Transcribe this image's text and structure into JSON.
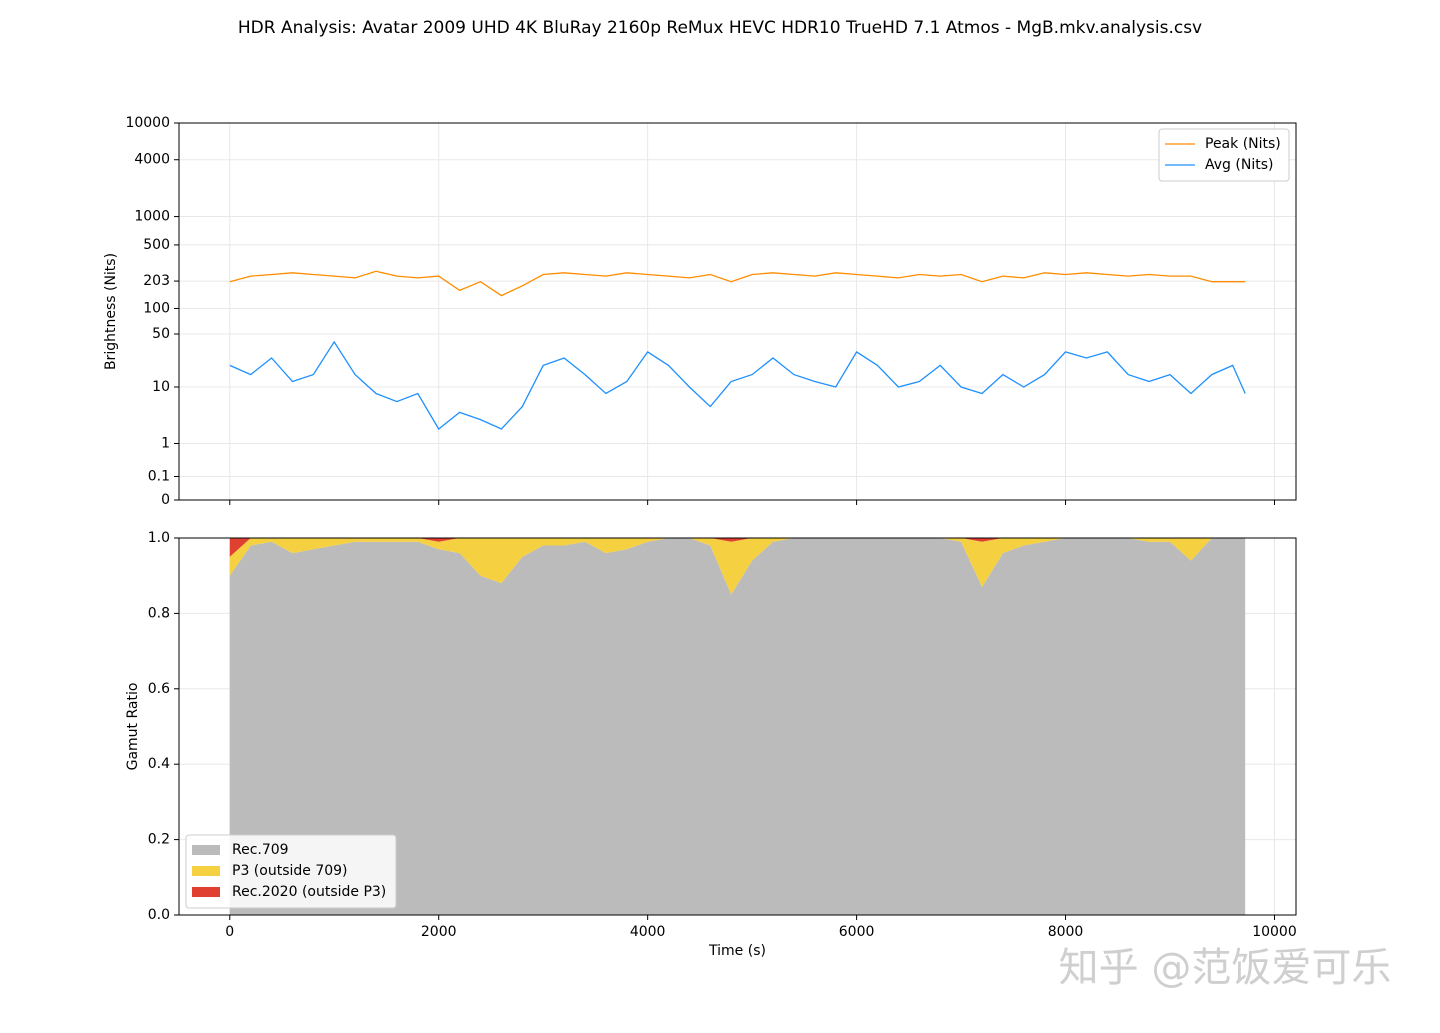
{
  "title": "HDR Analysis: Avatar 2009 UHD 4K BluRay 2160p ReMux HEVC HDR10 TrueHD 7.1 Atmos - MgB.mkv.analysis.csv",
  "watermark": "知乎 @范饭爱可乐",
  "chart_data": [
    {
      "type": "line",
      "ylabel": "Brightness (Nits)",
      "yscale": "pq",
      "grid": true,
      "legend": "upper right",
      "xlim": [
        -486,
        10206
      ],
      "ylim": [
        0,
        10000
      ],
      "xticks": [
        0,
        2000,
        4000,
        6000,
        8000,
        10000
      ],
      "yticks": [
        0,
        0.1,
        1,
        10,
        50,
        100,
        203,
        500,
        1000,
        4000,
        10000
      ],
      "x": [
        0,
        200,
        400,
        600,
        800,
        1000,
        1200,
        1400,
        1600,
        1800,
        2000,
        2200,
        2400,
        2600,
        2800,
        3000,
        3200,
        3400,
        3600,
        3800,
        4000,
        4200,
        4400,
        4600,
        4800,
        5000,
        5200,
        5400,
        5600,
        5800,
        6000,
        6200,
        6400,
        6600,
        6800,
        7000,
        7200,
        7400,
        7600,
        7800,
        8000,
        8200,
        8400,
        8600,
        8800,
        9000,
        9200,
        9400,
        9600,
        9720
      ],
      "series": [
        {
          "name": "Peak (Nits)",
          "color": "#ff8c00",
          "values": [
            200,
            230,
            240,
            250,
            240,
            230,
            220,
            260,
            230,
            220,
            230,
            160,
            200,
            140,
            180,
            240,
            250,
            240,
            230,
            250,
            240,
            230,
            220,
            240,
            200,
            240,
            250,
            240,
            230,
            250,
            240,
            230,
            220,
            240,
            230,
            240,
            200,
            230,
            220,
            250,
            240,
            250,
            240,
            230,
            240,
            230,
            230,
            200,
            200,
            200
          ]
        },
        {
          "name": "Avg (Nits)",
          "color": "#1e90ff",
          "values": [
            20,
            15,
            25,
            12,
            15,
            40,
            15,
            8,
            6,
            8,
            2,
            4,
            3,
            2,
            5,
            20,
            25,
            15,
            8,
            12,
            30,
            20,
            10,
            5,
            12,
            15,
            25,
            15,
            12,
            10,
            30,
            20,
            10,
            12,
            20,
            10,
            8,
            15,
            10,
            15,
            30,
            25,
            30,
            15,
            12,
            15,
            8,
            15,
            20,
            8
          ]
        }
      ]
    },
    {
      "type": "stacked-area",
      "ylabel": "Gamut Ratio",
      "xlabel": "Time (s)",
      "grid": true,
      "legend": "lower left",
      "xlim": [
        -486,
        10206
      ],
      "ylim": [
        0,
        1
      ],
      "xticks": [
        0,
        2000,
        4000,
        6000,
        8000,
        10000
      ],
      "yticks": [
        {
          "value": 0,
          "label": "0.0"
        },
        0.2,
        0.4,
        0.6,
        0.8,
        {
          "value": 1,
          "label": "1.0"
        }
      ],
      "x": [
        0,
        200,
        400,
        600,
        800,
        1000,
        1200,
        1400,
        1600,
        1800,
        2000,
        2200,
        2400,
        2600,
        2800,
        3000,
        3200,
        3400,
        3600,
        3800,
        4000,
        4200,
        4400,
        4600,
        4800,
        5000,
        5200,
        5400,
        5600,
        5800,
        6000,
        6200,
        6400,
        6600,
        6800,
        7000,
        7200,
        7400,
        7600,
        7800,
        8000,
        8200,
        8400,
        8600,
        8800,
        9000,
        9200,
        9400,
        9600,
        9720
      ],
      "series": [
        {
          "name": "Rec.709",
          "color": "#bbbbbb",
          "values": [
            0.9,
            0.98,
            0.99,
            0.96,
            0.97,
            0.98,
            0.99,
            0.99,
            0.99,
            0.99,
            0.97,
            0.96,
            0.9,
            0.88,
            0.95,
            0.98,
            0.98,
            0.99,
            0.96,
            0.97,
            0.99,
            1,
            1,
            0.98,
            0.85,
            0.94,
            0.99,
            1,
            1,
            1,
            1,
            1,
            1,
            1,
            1,
            0.99,
            0.87,
            0.96,
            0.98,
            0.99,
            1,
            1,
            1,
            1,
            0.99,
            0.99,
            0.94,
            1,
            1,
            1
          ]
        },
        {
          "name": "P3 (outside 709)",
          "color": "#f5d040",
          "values": [
            0.05,
            0.02,
            0.01,
            0.04,
            0.03,
            0.02,
            0.01,
            0.01,
            0.01,
            0.01,
            0.02,
            0.04,
            0.1,
            0.12,
            0.05,
            0.02,
            0.02,
            0.01,
            0.04,
            0.03,
            0.01,
            0,
            0,
            0.02,
            0.14,
            0.06,
            0.01,
            0,
            0,
            0,
            0,
            0,
            0,
            0,
            0,
            0.01,
            0.12,
            0.04,
            0.02,
            0.01,
            0,
            0,
            0,
            0,
            0.01,
            0.01,
            0.06,
            0,
            0,
            0
          ]
        },
        {
          "name": "Rec.2020 (outside P3)",
          "color": "#e04030",
          "values": [
            0.05,
            0,
            0,
            0,
            0,
            0,
            0,
            0,
            0,
            0,
            0.01,
            0,
            0,
            0,
            0,
            0,
            0,
            0,
            0,
            0,
            0,
            0,
            0,
            0,
            0.01,
            0,
            0,
            0,
            0,
            0,
            0,
            0,
            0,
            0,
            0,
            0,
            0.01,
            0,
            0,
            0,
            0,
            0,
            0,
            0,
            0,
            0,
            0,
            0,
            0,
            0
          ]
        }
      ]
    }
  ]
}
